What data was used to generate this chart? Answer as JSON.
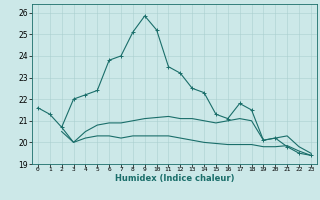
{
  "title": "",
  "xlabel": "Humidex (Indice chaleur)",
  "xlim": [
    -0.5,
    23.5
  ],
  "ylim": [
    19,
    26.4
  ],
  "yticks": [
    19,
    20,
    21,
    22,
    23,
    24,
    25,
    26
  ],
  "xticks": [
    0,
    1,
    2,
    3,
    4,
    5,
    6,
    7,
    8,
    9,
    10,
    11,
    12,
    13,
    14,
    15,
    16,
    17,
    18,
    19,
    20,
    21,
    22,
    23
  ],
  "bg_color": "#cce8e8",
  "line_color": "#1a6e6a",
  "grid_color": "#aacfcf",
  "series1_x": [
    0,
    1,
    2,
    3,
    4,
    5,
    6,
    7,
    8,
    9,
    10,
    11,
    12,
    13,
    14,
    15,
    16,
    17,
    18,
    19,
    20,
    21,
    22,
    23
  ],
  "series1_y": [
    21.6,
    21.3,
    20.7,
    22.0,
    22.2,
    22.4,
    23.8,
    24.0,
    25.1,
    25.85,
    25.2,
    23.5,
    23.2,
    22.5,
    22.3,
    21.3,
    21.1,
    21.8,
    21.5,
    20.1,
    20.2,
    19.8,
    19.5,
    19.4
  ],
  "series2_x": [
    2,
    3,
    4,
    5,
    6,
    7,
    8,
    9,
    10,
    11,
    12,
    13,
    14,
    15,
    16,
    17,
    18,
    19,
    20,
    21,
    22,
    23
  ],
  "series2_y": [
    20.7,
    20.0,
    20.5,
    20.8,
    20.9,
    20.9,
    21.0,
    21.1,
    21.15,
    21.2,
    21.1,
    21.1,
    21.0,
    20.9,
    21.0,
    21.1,
    21.0,
    20.1,
    20.2,
    20.3,
    19.8,
    19.5
  ],
  "series3_x": [
    2,
    3,
    4,
    5,
    6,
    7,
    8,
    9,
    10,
    11,
    12,
    13,
    14,
    15,
    16,
    17,
    18,
    19,
    20,
    21,
    22,
    23
  ],
  "series3_y": [
    20.5,
    20.0,
    20.2,
    20.3,
    20.3,
    20.2,
    20.3,
    20.3,
    20.3,
    20.3,
    20.2,
    20.1,
    20.0,
    19.95,
    19.9,
    19.9,
    19.9,
    19.8,
    19.8,
    19.85,
    19.6,
    19.4
  ]
}
